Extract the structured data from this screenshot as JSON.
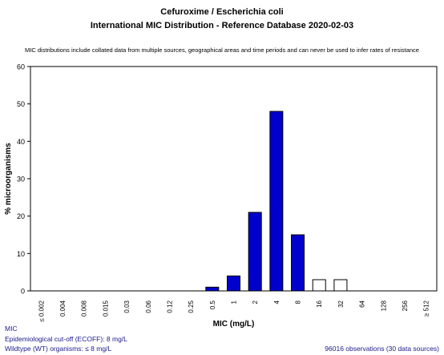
{
  "header": {
    "title_line1": "Cefuroxime / Escherichia coli",
    "title_line2": "International MIC Distribution - Reference Database 2020-02-03",
    "disclaimer": "MIC distributions include collated data from multiple sources, geographical areas and time periods and can never be used to infer rates of resistance"
  },
  "footer": {
    "mic_label": "MIC",
    "ecoff_text": "Epidemiological cut-off (ECOFF): 8 mg/L",
    "wt_text": "Wildtype (WT) organisms:  ≤ 8 mg/L",
    "observations_text": "96016 observations (30 data sources)"
  },
  "colors": {
    "wildtype_fill": "#0000cc",
    "non_wildtype_fill": "#ffffff",
    "axis": "#000000"
  },
  "chart_data": {
    "type": "bar",
    "xlabel": "MIC (mg/L)",
    "ylabel": "% microorganisms",
    "ylim": [
      0,
      60
    ],
    "yticks": [
      0,
      10,
      20,
      30,
      40,
      50,
      60
    ],
    "grid": false,
    "categories": [
      "≤ 0.002",
      "0.004",
      "0.008",
      "0.015",
      "0.03",
      "0.06",
      "0.12",
      "0.25",
      "0.5",
      "1",
      "2",
      "4",
      "8",
      "16",
      "32",
      "64",
      "128",
      "256",
      "≥ 512"
    ],
    "values": [
      0,
      0,
      0,
      0,
      0,
      0,
      0,
      0,
      1,
      4,
      21,
      48,
      15,
      3,
      3,
      0,
      0,
      0,
      0
    ],
    "wildtype": [
      true,
      true,
      true,
      true,
      true,
      true,
      true,
      true,
      true,
      true,
      true,
      true,
      true,
      false,
      false,
      false,
      false,
      false,
      false
    ]
  }
}
